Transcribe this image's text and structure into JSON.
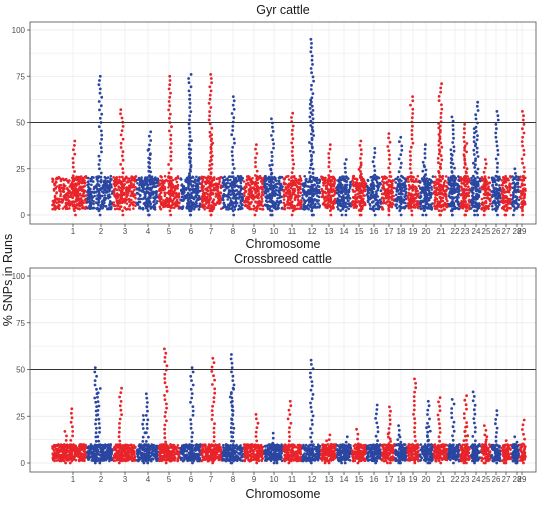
{
  "ylabel": "% SNPs in Runs",
  "colors": {
    "odd_chromosome": "#e8242a",
    "even_chromosome": "#2a46a0",
    "threshold": "#333333",
    "grid": "#e6e6e6",
    "frame": "#4d4d4d"
  },
  "chart_data": [
    {
      "type": "scatter",
      "title": "Gyr cattle",
      "xlabel": "Chromosome",
      "ylabel": "% SNPs in Runs",
      "ylim": [
        0,
        100
      ],
      "yticks": [
        0,
        25,
        50,
        75,
        100
      ],
      "threshold": 50,
      "grid": true,
      "categories": [
        "1",
        "2",
        "3",
        "4",
        "5",
        "6",
        "7",
        "8",
        "9",
        "10",
        "11",
        "12",
        "13",
        "14",
        "15",
        "16",
        "17",
        "18",
        "19",
        "20",
        "21",
        "22",
        "23",
        "24",
        "25",
        "26",
        "27",
        "28",
        "29"
      ],
      "series": [
        {
          "color_rule": "odd chromosomes",
          "values_max": [
            40,
            null,
            57,
            null,
            75,
            null,
            76,
            null,
            38,
            null,
            55,
            null,
            38,
            null,
            40,
            null,
            44,
            null,
            64,
            null,
            71,
            null,
            49,
            null,
            30,
            null,
            20,
            null,
            56
          ]
        },
        {
          "color_rule": "even chromosomes",
          "values_max": [
            null,
            75,
            null,
            45,
            null,
            76,
            null,
            64,
            null,
            52,
            null,
            95,
            null,
            30,
            null,
            36,
            null,
            42,
            null,
            38,
            null,
            53,
            null,
            61,
            null,
            56,
            null,
            25,
            null
          ]
        }
      ]
    },
    {
      "type": "scatter",
      "title": "Crossbreed cattle",
      "xlabel": "Chromosome",
      "ylabel": "% SNPs in Runs",
      "ylim": [
        0,
        100
      ],
      "yticks": [
        0,
        25,
        50,
        75,
        100
      ],
      "threshold": 50,
      "grid": true,
      "categories": [
        "1",
        "2",
        "3",
        "4",
        "5",
        "6",
        "7",
        "8",
        "9",
        "10",
        "11",
        "12",
        "13",
        "14",
        "15",
        "16",
        "17",
        "18",
        "19",
        "20",
        "21",
        "22",
        "23",
        "24",
        "25",
        "26",
        "27",
        "28",
        "29"
      ],
      "series": [
        {
          "color_rule": "odd chromosomes",
          "values_max": [
            29,
            null,
            40,
            null,
            61,
            null,
            56,
            null,
            26,
            null,
            33,
            null,
            15,
            null,
            18,
            null,
            30,
            null,
            45,
            null,
            35,
            null,
            36,
            null,
            20,
            null,
            12,
            null,
            23
          ]
        },
        {
          "color_rule": "even chromosomes",
          "values_max": [
            null,
            51,
            null,
            37,
            null,
            51,
            null,
            58,
            null,
            16,
            null,
            55,
            null,
            14,
            null,
            31,
            null,
            20,
            null,
            33,
            null,
            34,
            null,
            38,
            null,
            28,
            null,
            14,
            null
          ]
        }
      ]
    }
  ]
}
